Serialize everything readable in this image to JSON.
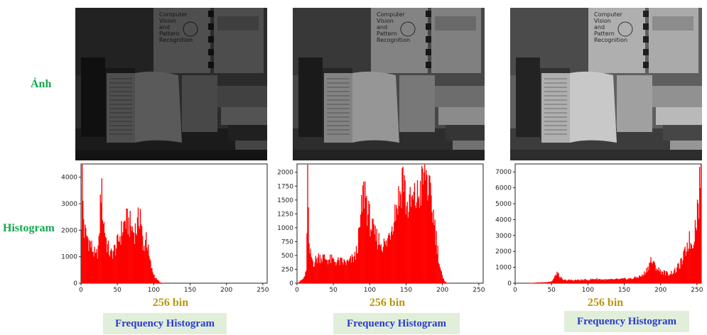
{
  "labels": {
    "image_row": "Ảnh",
    "histogram_row": "Histogram"
  },
  "panels": [
    {
      "bin_label": "256 bin",
      "caption": "Frequency Histogram",
      "brightness": 0.45,
      "book_title": [
        "Computer",
        "Vision",
        "and",
        "Pattern",
        "Recognition"
      ]
    },
    {
      "bin_label": "256 bin",
      "caption": "Frequency Histogram",
      "brightness": 0.75,
      "book_title": [
        "Computer",
        "Vision",
        "and",
        "Pattern",
        "Recognition"
      ]
    },
    {
      "bin_label": "256 bin",
      "caption": "Frequency Histogram",
      "brightness": 1.0,
      "book_title": [
        "Computer",
        "Vision",
        "and",
        "Pattern",
        "Recognition"
      ]
    }
  ],
  "chart_data": [
    {
      "type": "bar",
      "color": "#ff0000",
      "xlim": [
        0,
        256
      ],
      "ylim": [
        0,
        4500
      ],
      "xticks": [
        0,
        50,
        100,
        150,
        200,
        250
      ],
      "yticks": [
        0,
        1000,
        2000,
        3000,
        4000
      ],
      "peaks": [
        [
          0,
          2500
        ],
        [
          1,
          4450
        ],
        [
          2,
          3100
        ],
        [
          4,
          2000
        ],
        [
          8,
          1800
        ],
        [
          14,
          1400
        ],
        [
          20,
          1000
        ],
        [
          24,
          1500
        ],
        [
          27,
          3800
        ],
        [
          30,
          2500
        ],
        [
          35,
          1500
        ],
        [
          40,
          1100
        ],
        [
          48,
          1400
        ],
        [
          55,
          2000
        ],
        [
          60,
          2400
        ],
        [
          66,
          2300
        ],
        [
          72,
          2000
        ],
        [
          77,
          2200
        ],
        [
          81,
          2850
        ],
        [
          85,
          1200
        ],
        [
          89,
          1900
        ],
        [
          93,
          1000
        ],
        [
          97,
          500
        ],
        [
          102,
          200
        ],
        [
          108,
          30
        ],
        [
          115,
          0
        ]
      ]
    },
    {
      "type": "bar",
      "color": "#ff0000",
      "xlim": [
        0,
        256
      ],
      "ylim": [
        0,
        2150
      ],
      "xticks": [
        0,
        50,
        100,
        150,
        200,
        250
      ],
      "yticks": [
        0,
        250,
        500,
        750,
        1000,
        1250,
        1500,
        1750,
        2000
      ],
      "peaks": [
        [
          0,
          0
        ],
        [
          8,
          80
        ],
        [
          12,
          200
        ],
        [
          14,
          2000
        ],
        [
          16,
          600
        ],
        [
          22,
          380
        ],
        [
          30,
          500
        ],
        [
          40,
          450
        ],
        [
          55,
          400
        ],
        [
          70,
          380
        ],
        [
          80,
          500
        ],
        [
          85,
          900
        ],
        [
          90,
          1600
        ],
        [
          93,
          1750
        ],
        [
          97,
          1300
        ],
        [
          105,
          900
        ],
        [
          115,
          750
        ],
        [
          122,
          700
        ],
        [
          128,
          1000
        ],
        [
          135,
          1400
        ],
        [
          142,
          1700
        ],
        [
          145,
          2100
        ],
        [
          150,
          1400
        ],
        [
          158,
          1500
        ],
        [
          165,
          1600
        ],
        [
          170,
          1750
        ],
        [
          176,
          2100
        ],
        [
          182,
          1600
        ],
        [
          188,
          1200
        ],
        [
          192,
          700
        ],
        [
          196,
          300
        ],
        [
          200,
          80
        ],
        [
          205,
          10
        ],
        [
          210,
          0
        ]
      ]
    },
    {
      "type": "bar",
      "color": "#ff0000",
      "xlim": [
        0,
        256
      ],
      "ylim": [
        0,
        7500
      ],
      "xticks": [
        0,
        50,
        100,
        150,
        200,
        250
      ],
      "yticks": [
        0,
        1000,
        2000,
        3000,
        4000,
        5000,
        6000,
        7000
      ],
      "peaks": [
        [
          0,
          0
        ],
        [
          15,
          0
        ],
        [
          20,
          20
        ],
        [
          40,
          60
        ],
        [
          50,
          120
        ],
        [
          54,
          400
        ],
        [
          57,
          700
        ],
        [
          60,
          450
        ],
        [
          65,
          200
        ],
        [
          80,
          200
        ],
        [
          100,
          220
        ],
        [
          110,
          280
        ],
        [
          125,
          220
        ],
        [
          140,
          250
        ],
        [
          160,
          300
        ],
        [
          175,
          500
        ],
        [
          182,
          1000
        ],
        [
          186,
          1500
        ],
        [
          190,
          1200
        ],
        [
          198,
          800
        ],
        [
          210,
          600
        ],
        [
          220,
          800
        ],
        [
          230,
          1500
        ],
        [
          238,
          2800
        ],
        [
          243,
          2500
        ],
        [
          248,
          4000
        ],
        [
          252,
          5500
        ],
        [
          254,
          7200
        ],
        [
          255,
          7400
        ]
      ]
    }
  ]
}
